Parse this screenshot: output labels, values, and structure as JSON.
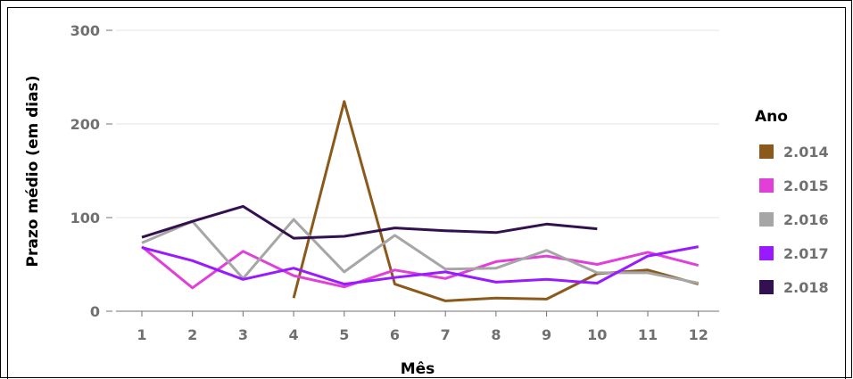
{
  "chart_data": {
    "type": "line",
    "xlabel": "Mês",
    "ylabel": "Prazo médio (em dias)",
    "x": [
      1,
      2,
      3,
      4,
      5,
      6,
      7,
      8,
      9,
      10,
      11,
      12
    ],
    "xticks": [
      "1",
      "2",
      "3",
      "4",
      "5",
      "6",
      "7",
      "8",
      "9",
      "10",
      "11",
      "12"
    ],
    "ylim": [
      0,
      300
    ],
    "yticks": [
      "0",
      "100",
      "200",
      "300"
    ],
    "grid": true,
    "legend_title": "Ano",
    "legend_position": "right",
    "series": [
      {
        "name": "2.014",
        "color": "#8b5a1b",
        "x": [
          4,
          5,
          6,
          7,
          8,
          9,
          10,
          11,
          12
        ],
        "values": [
          14,
          224,
          29,
          11,
          14,
          13,
          40,
          44,
          29
        ]
      },
      {
        "name": "2.015",
        "color": "#e040d8",
        "x": [
          1,
          2,
          3,
          4,
          5,
          6,
          7,
          8,
          9,
          10,
          11,
          12
        ],
        "values": [
          69,
          25,
          64,
          38,
          26,
          44,
          35,
          53,
          59,
          50,
          63,
          49
        ]
      },
      {
        "name": "2.016",
        "color": "#a6a6a6",
        "x": [
          1,
          2,
          3,
          4,
          5,
          6,
          7,
          8,
          9,
          10,
          11,
          12
        ],
        "values": [
          73,
          96,
          35,
          98,
          42,
          81,
          45,
          46,
          65,
          41,
          41,
          30
        ]
      },
      {
        "name": "2.017",
        "color": "#9a1aff",
        "x": [
          1,
          2,
          3,
          4,
          5,
          6,
          7,
          8,
          9,
          10,
          11,
          12
        ],
        "values": [
          68,
          54,
          34,
          46,
          29,
          36,
          42,
          31,
          34,
          30,
          59,
          69
        ]
      },
      {
        "name": "2.018",
        "color": "#33104f",
        "x": [
          1,
          2,
          3,
          4,
          5,
          6,
          7,
          8,
          9,
          10
        ],
        "values": [
          79,
          96,
          112,
          78,
          80,
          89,
          86,
          84,
          93,
          88
        ]
      }
    ]
  }
}
